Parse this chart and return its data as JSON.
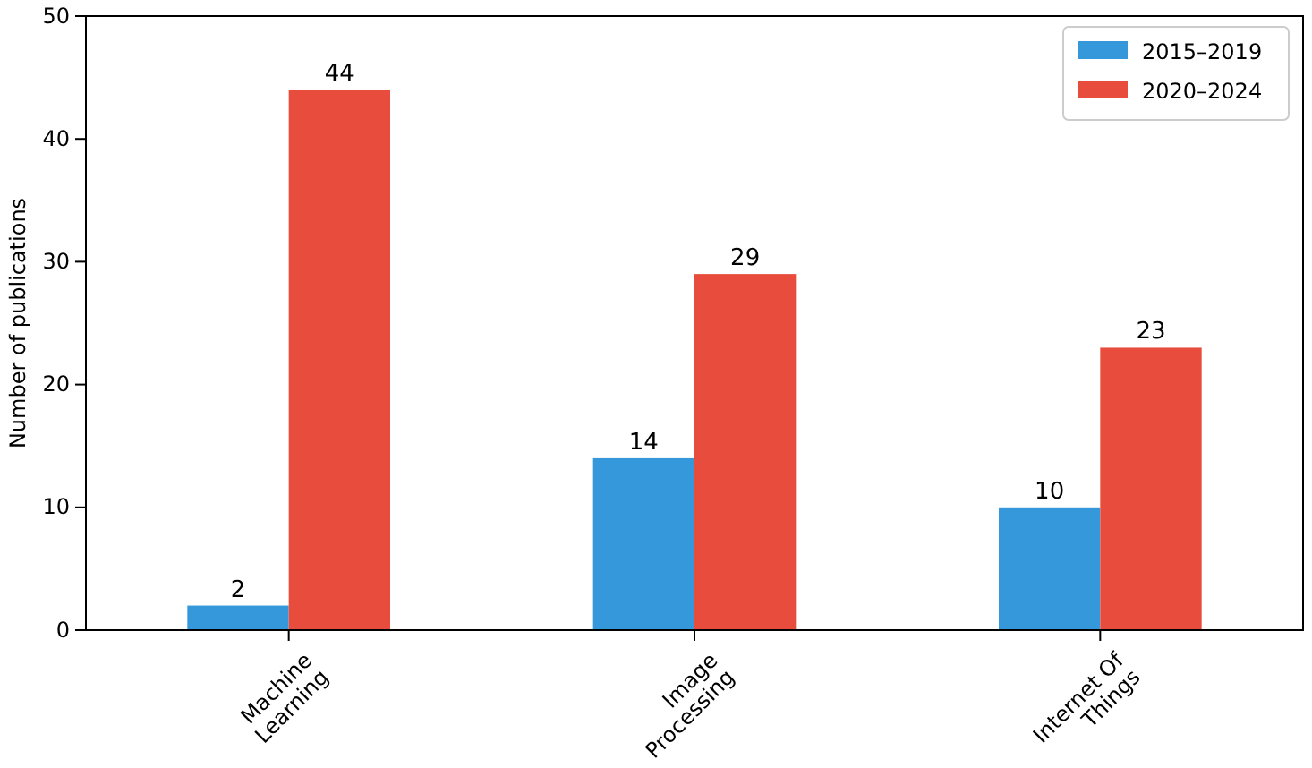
{
  "chart_data": {
    "type": "bar",
    "ylabel": "Number of publications",
    "categories": [
      "Machine\nLearning",
      "Image\nProcessing",
      "Internet Of\nThings"
    ],
    "series": [
      {
        "name": "2015–2019",
        "color": "#3498db",
        "values": [
          2,
          14,
          10
        ]
      },
      {
        "name": "2020–2024",
        "color": "#e74c3c",
        "values": [
          44,
          29,
          23
        ]
      }
    ],
    "ylim": [
      0,
      50
    ],
    "yticks": [
      0,
      10,
      20,
      30,
      40,
      50
    ],
    "data_labels": true,
    "legend": "top right",
    "grid": false
  }
}
